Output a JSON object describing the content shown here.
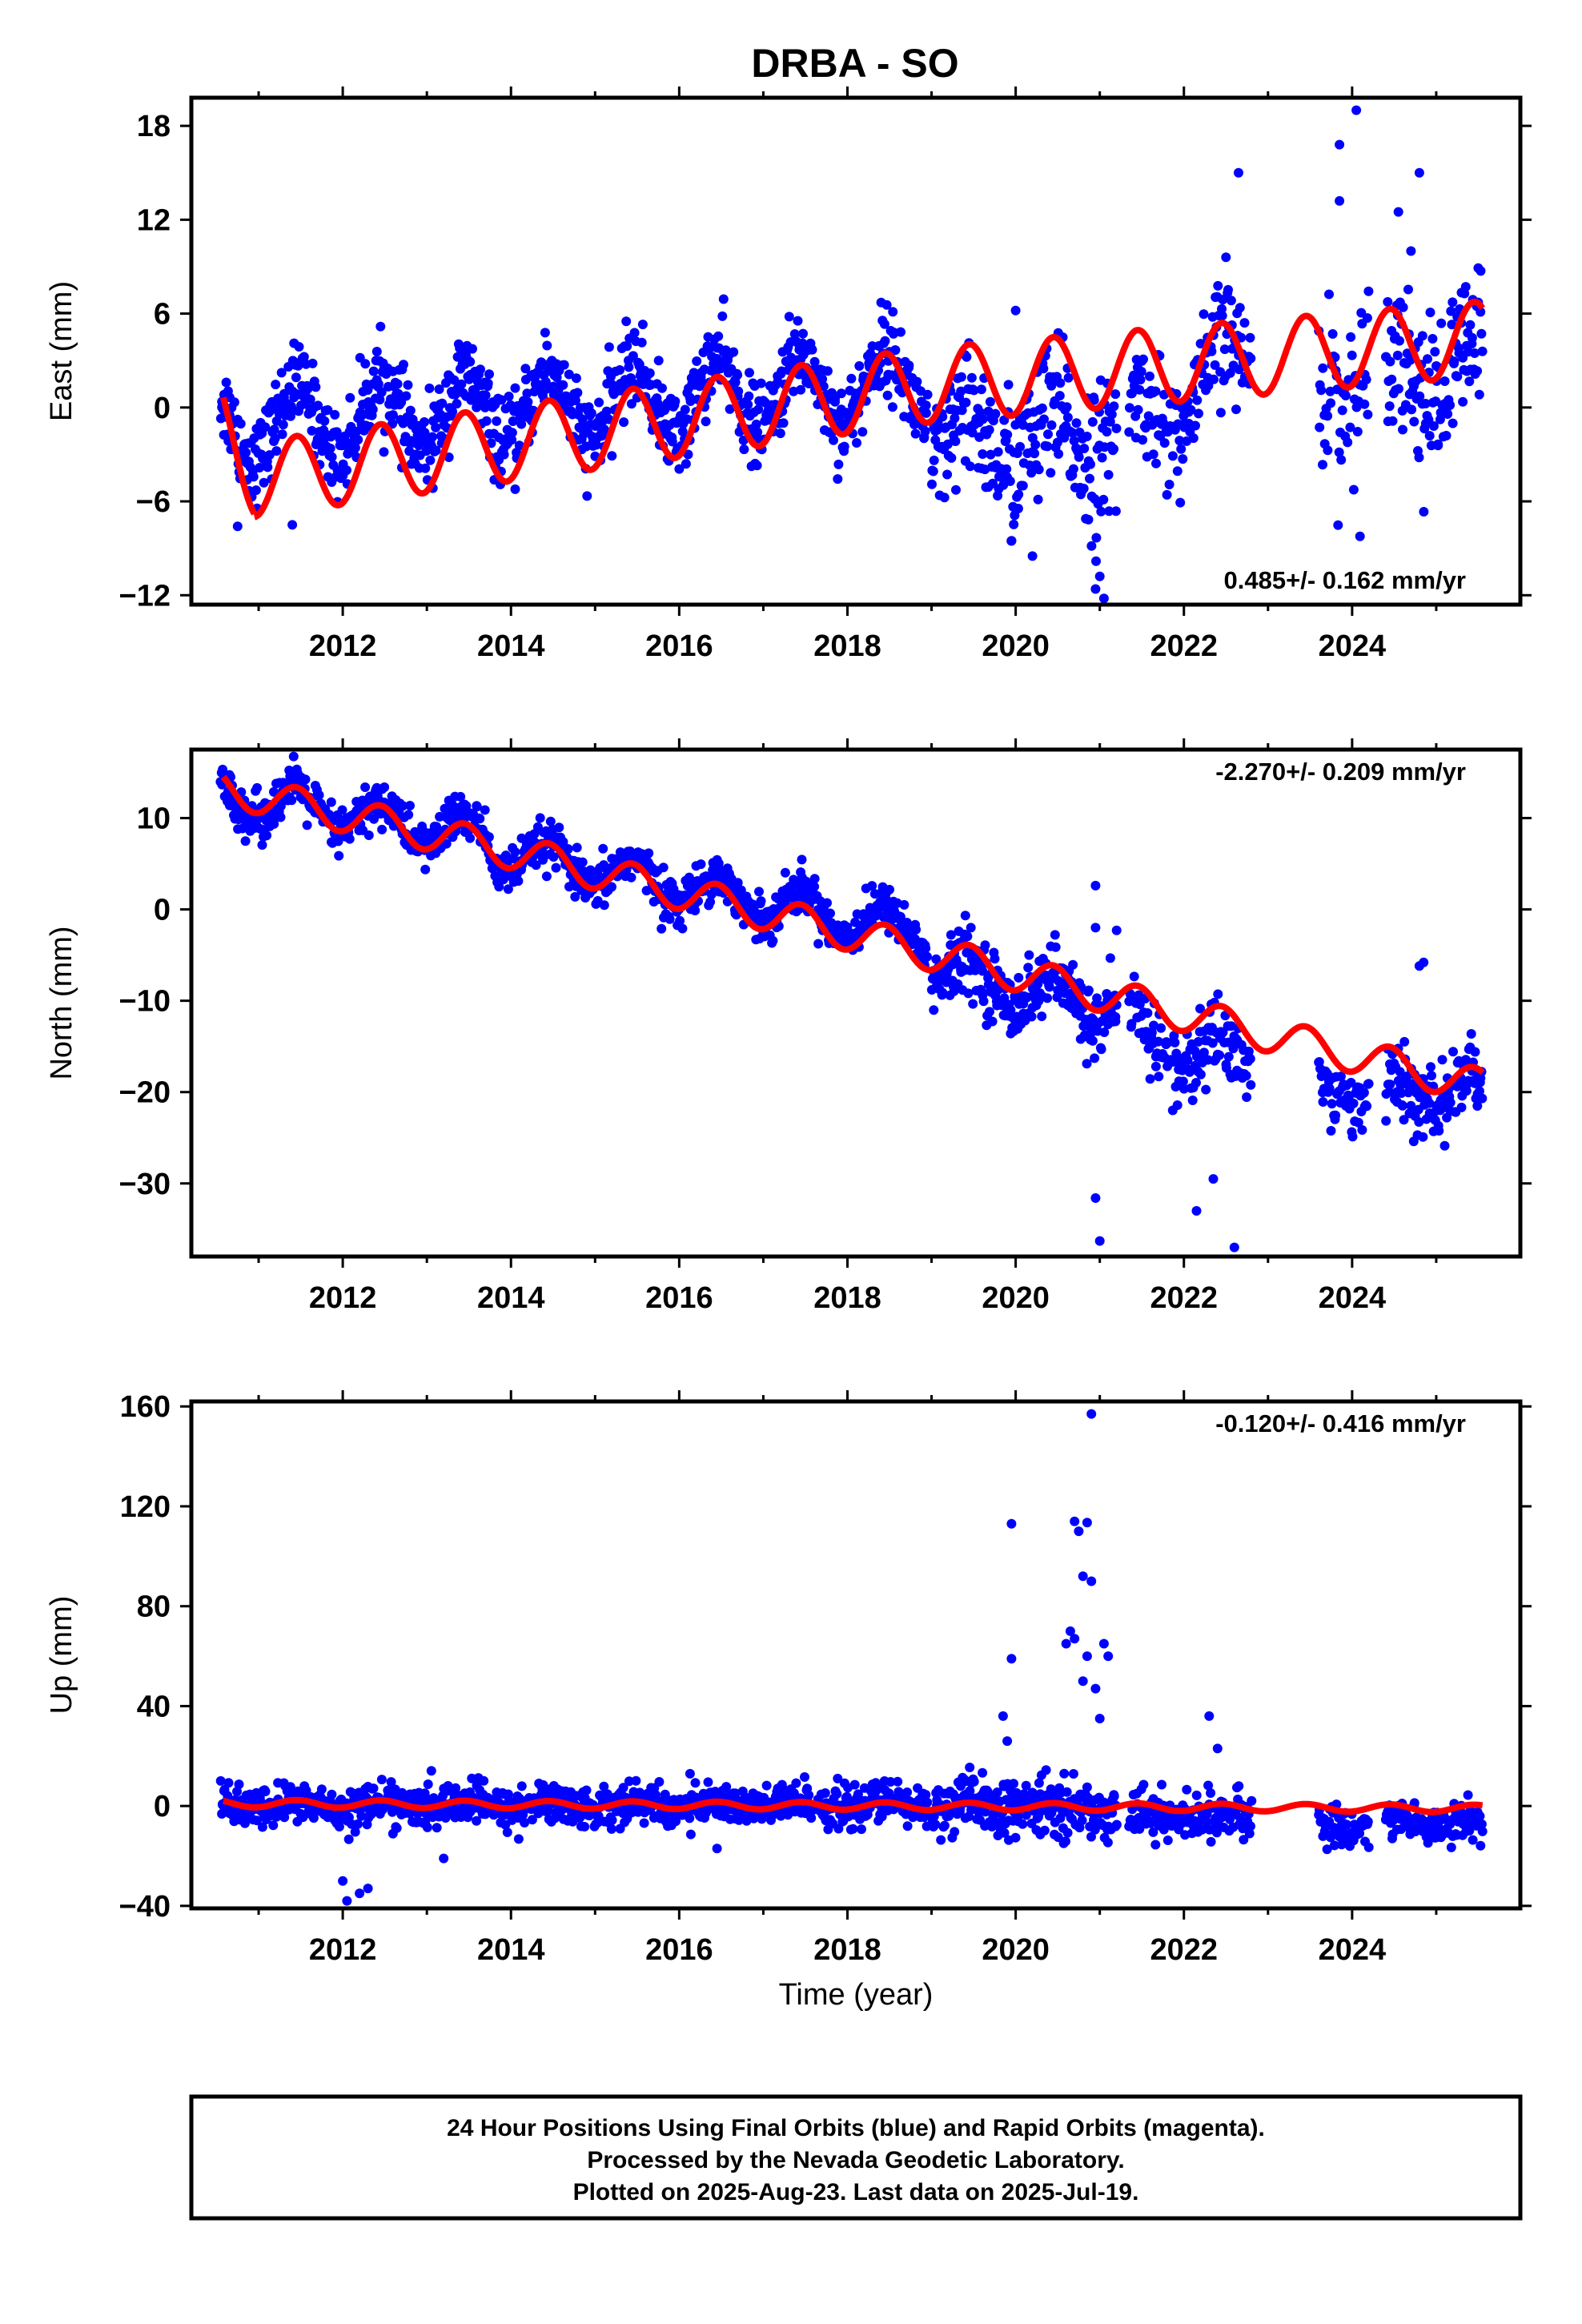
{
  "title": "DRBA - SO",
  "colors": {
    "points": "#0000ff",
    "model": "#ff0000",
    "frame": "#000000"
  },
  "chart_data": [
    {
      "type": "scatter",
      "name": "east",
      "ylabel": "East (mm)",
      "xlabel": "",
      "xlim": [
        2010.2,
        2026.0
      ],
      "ylim": [
        -12.6,
        19.8
      ],
      "yticks": [
        -12,
        -6,
        0,
        6,
        12,
        18
      ],
      "xticks": [
        2012,
        2014,
        2016,
        2018,
        2020,
        2022,
        2024
      ],
      "rate": "0.485+/- 0.162 mm/yr",
      "rate_position": "bottom-right",
      "model_amplitude": 2.4,
      "model_phase": 2010.2,
      "model_segments": [
        [
          2010.58,
          2010.95,
          -1.0,
          -4.4
        ],
        [
          2010.95,
          2018.9,
          -4.6,
          1.4
        ],
        [
          2018.9,
          2025.55,
          1.4,
          4.4
        ]
      ],
      "data_segments": [
        {
          "range": [
            2010.55,
            2018.95
          ],
          "base_start": -1.2,
          "base_end": 1.6,
          "season": 2.3,
          "noise": 1.3,
          "density": 120
        },
        {
          "range": [
            2019.0,
            2019.9
          ],
          "base_start": -2.5,
          "base_end": -2.2,
          "season": 1.8,
          "noise": 2.1,
          "density": 120
        },
        {
          "range": [
            2019.9,
            2021.2
          ],
          "base_start": -2.2,
          "base_end": -2.0,
          "season": 1.5,
          "noise": 2.4,
          "density": 110
        },
        {
          "range": [
            2021.35,
            2022.8
          ],
          "base_start": -1.8,
          "base_end": 3.5,
          "season": 2.2,
          "noise": 1.8,
          "density": 100
        },
        {
          "range": [
            2023.6,
            2024.2
          ],
          "base_start": 1.5,
          "base_end": 2.5,
          "season": 2.0,
          "noise": 2.8,
          "density": 90
        },
        {
          "range": [
            2024.4,
            2025.55
          ],
          "base_start": 2.5,
          "base_end": 2.0,
          "season": 2.0,
          "noise": 2.5,
          "density": 110
        }
      ],
      "outliers": [
        [
          2024.05,
          19.0
        ],
        [
          2023.85,
          16.8
        ],
        [
          2022.65,
          15.0
        ],
        [
          2024.8,
          15.0
        ],
        [
          2023.85,
          13.2
        ],
        [
          2024.55,
          12.5
        ],
        [
          2024.7,
          10.0
        ],
        [
          2022.5,
          9.6
        ],
        [
          2020.0,
          6.2
        ],
        [
          2021.0,
          -10.8
        ],
        [
          2020.95,
          -11.6
        ],
        [
          2021.05,
          -12.2
        ],
        [
          2020.2,
          -9.5
        ],
        [
          2011.4,
          -7.5
        ],
        [
          2010.75,
          -7.6
        ]
      ]
    },
    {
      "type": "scatter",
      "name": "north",
      "ylabel": "North (mm)",
      "xlabel": "",
      "xlim": [
        2010.2,
        2026.0
      ],
      "ylim": [
        -38.0,
        17.5
      ],
      "yticks": [
        -30,
        -20,
        -10,
        0,
        10
      ],
      "xticks": [
        2012,
        2014,
        2016,
        2018,
        2020,
        2022,
        2024
      ],
      "rate": "-2.270+/- 0.209 mm/yr",
      "rate_position": "top-right",
      "model_amplitude": 1.9,
      "model_phase": 2010.2,
      "model_segments": [
        [
          2010.58,
          2013.7,
          13.2,
          7.0
        ],
        [
          2013.7,
          2025.55,
          7.0,
          -19.4
        ]
      ],
      "data_segments": [
        {
          "range": [
            2010.55,
            2013.7
          ],
          "base_start": 12.5,
          "base_end": 8.0,
          "season": 2.0,
          "noise": 1.3,
          "density": 110
        },
        {
          "range": [
            2013.7,
            2018.95
          ],
          "base_start": 6.5,
          "base_end": -2.5,
          "season": 2.0,
          "noise": 1.2,
          "density": 120
        },
        {
          "range": [
            2019.0,
            2021.2
          ],
          "base_start": -6.5,
          "base_end": -11.0,
          "season": 2.0,
          "noise": 1.8,
          "density": 120
        },
        {
          "range": [
            2021.35,
            2022.8
          ],
          "base_start": -14.0,
          "base_end": -17.0,
          "season": 2.5,
          "noise": 2.2,
          "density": 100
        },
        {
          "range": [
            2023.6,
            2024.2
          ],
          "base_start": -19.5,
          "base_end": -20.0,
          "season": 1.5,
          "noise": 1.8,
          "density": 90
        },
        {
          "range": [
            2024.4,
            2025.55
          ],
          "base_start": -20.5,
          "base_end": -19.5,
          "season": 1.8,
          "noise": 2.0,
          "density": 110
        }
      ],
      "outliers": [
        [
          2020.95,
          2.6
        ],
        [
          2021.0,
          -36.3
        ],
        [
          2022.6,
          -37.0
        ],
        [
          2020.95,
          -31.6
        ],
        [
          2022.15,
          -33.0
        ],
        [
          2022.35,
          -29.5
        ],
        [
          2024.8,
          -6.2
        ],
        [
          2024.85,
          -5.8
        ],
        [
          2020.95,
          -2.0
        ],
        [
          2021.2,
          -2.3
        ]
      ]
    },
    {
      "type": "scatter",
      "name": "up",
      "ylabel": "Up (mm)",
      "xlabel": "Time (year)",
      "xlim": [
        2010.2,
        2026.0
      ],
      "ylim": [
        -41.0,
        162.0
      ],
      "yticks": [
        -40,
        0,
        40,
        80,
        120,
        160
      ],
      "xticks": [
        2012,
        2014,
        2016,
        2018,
        2020,
        2022,
        2024
      ],
      "rate": "-0.120+/- 0.416 mm/yr",
      "rate_position": "top-right",
      "model_amplitude": 1.5,
      "model_phase": 2010.2,
      "model_segments": [
        [
          2010.58,
          2025.55,
          1.0,
          -1.0
        ]
      ],
      "data_segments": [
        {
          "range": [
            2010.55,
            2018.95
          ],
          "base_start": 0.0,
          "base_end": 0.5,
          "season": 1.5,
          "noise": 4.0,
          "density": 120
        },
        {
          "range": [
            2019.0,
            2021.2
          ],
          "base_start": 0.0,
          "base_end": -1.5,
          "season": 1.5,
          "noise": 5.5,
          "density": 120
        },
        {
          "range": [
            2021.35,
            2022.8
          ],
          "base_start": -3.0,
          "base_end": -5.0,
          "season": 1.5,
          "noise": 4.5,
          "density": 100
        },
        {
          "range": [
            2023.6,
            2024.2
          ],
          "base_start": -7.0,
          "base_end": -8.0,
          "season": 1.5,
          "noise": 4.0,
          "density": 90
        },
        {
          "range": [
            2024.4,
            2025.55
          ],
          "base_start": -6.0,
          "base_end": -7.0,
          "season": 1.5,
          "noise": 4.0,
          "density": 110
        }
      ],
      "outliers": [
        [
          2020.9,
          157.0
        ],
        [
          2019.95,
          113.0
        ],
        [
          2020.7,
          114.0
        ],
        [
          2020.85,
          113.5
        ],
        [
          2020.75,
          110.0
        ],
        [
          2020.8,
          92.0
        ],
        [
          2020.9,
          90.0
        ],
        [
          2020.65,
          70.0
        ],
        [
          2020.7,
          67.0
        ],
        [
          2020.6,
          65.0
        ],
        [
          2021.05,
          65.0
        ],
        [
          2021.1,
          60.0
        ],
        [
          2020.8,
          50.0
        ],
        [
          2020.95,
          47.0
        ],
        [
          2021.0,
          35.0
        ],
        [
          2019.95,
          59.0
        ],
        [
          2020.85,
          60.0
        ],
        [
          2019.85,
          36.0
        ],
        [
          2022.3,
          36.0
        ],
        [
          2022.4,
          23.0
        ],
        [
          2012.05,
          -38.0
        ],
        [
          2012.2,
          -35.0
        ],
        [
          2012.3,
          -33.0
        ],
        [
          2012.0,
          -30.0
        ],
        [
          2013.2,
          -21.0
        ],
        [
          2016.45,
          -17.0
        ],
        [
          2019.9,
          26.0
        ]
      ]
    }
  ],
  "caption": {
    "line1": "24 Hour Positions Using Final Orbits (blue) and Rapid Orbits (magenta).",
    "line2": "Processed by the Nevada Geodetic Laboratory.",
    "line3": "Plotted on 2025-Aug-23. Last data on 2025-Jul-19."
  }
}
